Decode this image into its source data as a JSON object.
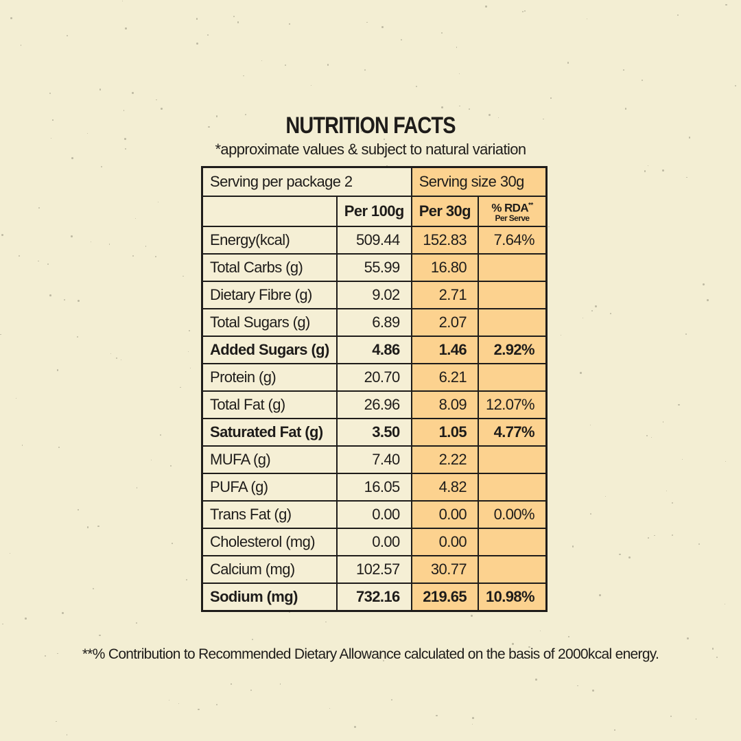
{
  "title": "NUTRITION FACTS",
  "subtitle": "*approximate values & subject to natural variation",
  "serving_per_package": "Serving per package 2",
  "serving_size": "Serving size 30g",
  "columns": {
    "per100": "Per 100g",
    "per30": "Per 30g",
    "rda": "% RDA",
    "rda_mark": "**",
    "rda_sub": "Per Serve"
  },
  "rows": [
    {
      "label": "Energy(kcal)",
      "per100": "509.44",
      "per30": "152.83",
      "rda": "7.64%",
      "bold": false
    },
    {
      "label": "Total Carbs (g)",
      "per100": "55.99",
      "per30": "16.80",
      "rda": "",
      "bold": false
    },
    {
      "label": "Dietary Fibre (g)",
      "per100": "9.02",
      "per30": "2.71",
      "rda": "",
      "bold": false
    },
    {
      "label": "Total Sugars (g)",
      "per100": "6.89",
      "per30": "2.07",
      "rda": "",
      "bold": false
    },
    {
      "label": "Added Sugars (g)",
      "per100": "4.86",
      "per30": "1.46",
      "rda": "2.92%",
      "bold": true
    },
    {
      "label": "Protein (g)",
      "per100": "20.70",
      "per30": "6.21",
      "rda": "",
      "bold": false
    },
    {
      "label": "Total Fat (g)",
      "per100": "26.96",
      "per30": "8.09",
      "rda": "12.07%",
      "bold": false
    },
    {
      "label": "Saturated Fat (g)",
      "per100": "3.50",
      "per30": "1.05",
      "rda": "4.77%",
      "bold": true
    },
    {
      "label": "MUFA (g)",
      "per100": "7.40",
      "per30": "2.22",
      "rda": "",
      "bold": false
    },
    {
      "label": "PUFA (g)",
      "per100": "16.05",
      "per30": "4.82",
      "rda": "",
      "bold": false
    },
    {
      "label": "Trans Fat (g)",
      "per100": "0.00",
      "per30": "0.00",
      "rda": "0.00%",
      "bold": false
    },
    {
      "label": "Cholesterol (mg)",
      "per100": "0.00",
      "per30": "0.00",
      "rda": "",
      "bold": false
    },
    {
      "label": "Calcium (mg)",
      "per100": "102.57",
      "per30": "30.77",
      "rda": "",
      "bold": false
    },
    {
      "label": "Sodium (mg)",
      "per100": "732.16",
      "per30": "219.65",
      "rda": "10.98%",
      "bold": true
    }
  ],
  "footnote": "**% Contribution to Recommended Dietary Allowance calculated on the basis of 2000kcal energy.",
  "colors": {
    "background": "#f3eed3",
    "cream": "#f5efd5",
    "orange": "#fcd28f",
    "ink": "#1e1c1a"
  }
}
